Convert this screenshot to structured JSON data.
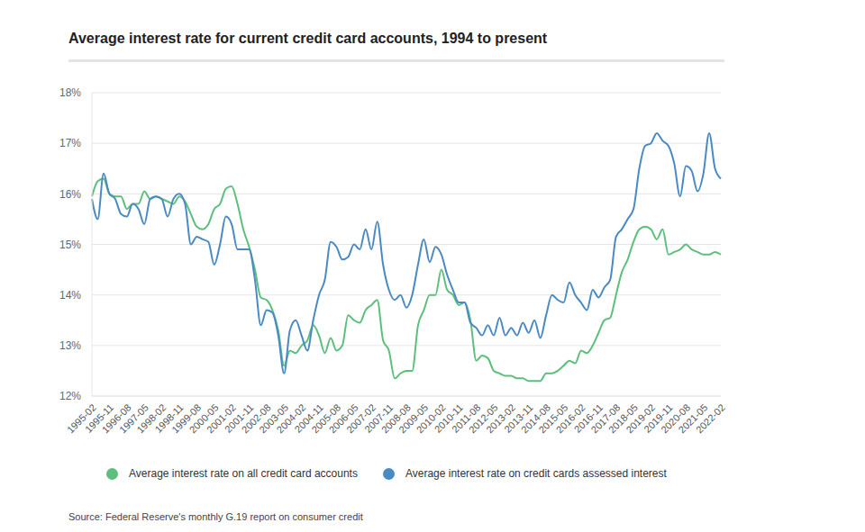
{
  "chart_data": {
    "type": "line",
    "title": "Average interest rate for current credit card accounts, 1994 to present",
    "source": "Source: Federal Reserve's monthly G.19 report on consumer credit",
    "categories": [
      "1995-02",
      null,
      null,
      "1995-11",
      null,
      null,
      "1996-08",
      null,
      null,
      "1997-05",
      null,
      null,
      "1998-02",
      null,
      null,
      "1998-11",
      null,
      null,
      "1999-08",
      null,
      null,
      "2000-05",
      null,
      null,
      "2001-02",
      null,
      null,
      "2001-11",
      null,
      null,
      "2002-08",
      null,
      null,
      "2003-05",
      null,
      null,
      "2004-02",
      null,
      null,
      "2004-11",
      null,
      null,
      "2005-08",
      null,
      null,
      "2006-05",
      null,
      null,
      "2007-02",
      null,
      null,
      "2007-11",
      null,
      null,
      "2008-08",
      null,
      null,
      "2009-05",
      null,
      null,
      "2010-02",
      null,
      null,
      "2010-11",
      null,
      null,
      "2011-08",
      null,
      null,
      "2012-05",
      null,
      null,
      "2013-02",
      null,
      null,
      "2013-11",
      null,
      null,
      "2014-08",
      null,
      null,
      "2015-05",
      null,
      null,
      "2016-02",
      null,
      null,
      "2016-11",
      null,
      null,
      "2017-08",
      null,
      null,
      "2018-05",
      null,
      null,
      "2019-02",
      null,
      null,
      "2019-11",
      null,
      null,
      "2020-08",
      null,
      null,
      "2021-05",
      null,
      null,
      "2022-02"
    ],
    "series": [
      {
        "name": "Average interest rate on all credit card accounts",
        "color": "#5cbf7c",
        "values": [
          15.95,
          16.25,
          16.3,
          16.0,
          15.95,
          15.95,
          15.7,
          15.8,
          15.8,
          16.05,
          15.9,
          15.95,
          15.9,
          15.85,
          15.8,
          15.95,
          15.85,
          15.6,
          15.35,
          15.3,
          15.4,
          15.7,
          15.8,
          16.1,
          16.15,
          15.8,
          15.3,
          14.95,
          14.5,
          13.95,
          13.9,
          13.7,
          13.3,
          12.6,
          12.9,
          12.85,
          13.0,
          13.1,
          13.4,
          13.2,
          12.85,
          13.15,
          12.9,
          13.0,
          13.6,
          13.5,
          13.45,
          13.7,
          13.8,
          13.9,
          13.1,
          12.9,
          12.35,
          12.45,
          12.5,
          12.5,
          13.4,
          13.7,
          14.0,
          14.0,
          14.5,
          14.1,
          14.0,
          13.8,
          13.85,
          13.5,
          12.7,
          12.8,
          12.75,
          12.5,
          12.45,
          12.4,
          12.4,
          12.35,
          12.35,
          12.3,
          12.3,
          12.3,
          12.45,
          12.45,
          12.5,
          12.6,
          12.7,
          12.65,
          12.9,
          12.85,
          13.0,
          13.25,
          13.5,
          13.55,
          14.0,
          14.45,
          14.7,
          15.05,
          15.3,
          15.35,
          15.3,
          15.1,
          15.3,
          14.8,
          14.85,
          14.9,
          15.0,
          14.9,
          14.85,
          14.8,
          14.8,
          14.85,
          14.8
        ]
      },
      {
        "name": "Average interest rate on credit cards assessed interest",
        "color": "#4a8ac4",
        "values": [
          15.9,
          15.5,
          16.4,
          16.0,
          15.9,
          15.6,
          15.55,
          15.8,
          15.7,
          15.4,
          15.9,
          15.95,
          15.9,
          15.55,
          15.9,
          16.0,
          15.8,
          15.0,
          15.15,
          15.1,
          15.05,
          14.6,
          15.0,
          15.55,
          15.4,
          14.9,
          14.9,
          14.9,
          14.3,
          13.4,
          13.7,
          13.65,
          13.2,
          12.45,
          13.3,
          13.5,
          13.2,
          12.9,
          13.5,
          14.0,
          14.3,
          15.05,
          14.95,
          14.7,
          14.75,
          15.0,
          14.9,
          15.3,
          14.9,
          15.45,
          14.6,
          14.1,
          13.9,
          14.0,
          13.75,
          14.0,
          14.6,
          15.1,
          14.65,
          14.95,
          14.8,
          14.4,
          14.1,
          13.85,
          13.85,
          13.45,
          13.35,
          13.2,
          13.4,
          13.2,
          13.55,
          13.2,
          13.35,
          13.2,
          13.45,
          13.25,
          13.5,
          13.15,
          13.6,
          14.0,
          13.9,
          13.85,
          14.25,
          14.0,
          13.85,
          13.7,
          14.1,
          13.95,
          14.15,
          14.3,
          15.15,
          15.3,
          15.5,
          15.7,
          16.5,
          16.95,
          17.0,
          17.2,
          17.05,
          16.95,
          16.6,
          15.95,
          16.55,
          16.45,
          16.05,
          16.4,
          17.2,
          16.5,
          16.3
        ]
      }
    ],
    "ylim": [
      12,
      18
    ],
    "yticks": [
      {
        "value": 12,
        "label": "12%"
      },
      {
        "value": 13,
        "label": "13%"
      },
      {
        "value": 14,
        "label": "14%"
      },
      {
        "value": 15,
        "label": "15%"
      },
      {
        "value": 16,
        "label": "16%"
      },
      {
        "value": 17,
        "label": "17%"
      },
      {
        "value": 18,
        "label": "18%"
      }
    ],
    "grid": true
  }
}
